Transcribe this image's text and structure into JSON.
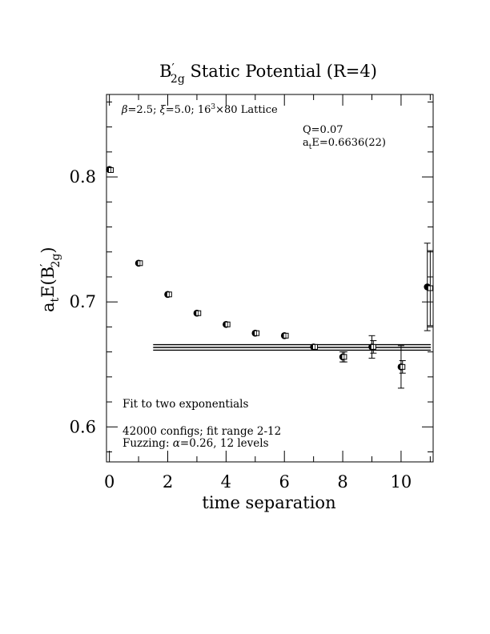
{
  "chart_data": {
    "type": "scatter",
    "title": "B′_2g Static Potential (R=4)",
    "title_main": "B",
    "title_prime": "′",
    "title_sub": "2g",
    "title_rest": " Static Potential (R=4)",
    "xlabel": "time separation",
    "ylabel": "a_t E(B′_2g)",
    "ylabel_parts": {
      "a": "a",
      "t_sub": "t",
      "E": "E(B",
      "prime": "′",
      "sub": "2g",
      "close": ")"
    },
    "xlim": [
      -0.1,
      11.1
    ],
    "ylim": [
      0.572,
      0.866
    ],
    "x_ticks": [
      0,
      2,
      4,
      6,
      8,
      10
    ],
    "x_tick_labels": [
      "0",
      "2",
      "4",
      "6",
      "8",
      "10"
    ],
    "y_ticks": [
      0.6,
      0.7,
      0.8
    ],
    "y_tick_labels": [
      "0.6",
      "0.7",
      "0.8"
    ],
    "annotations": {
      "lattice": {
        "beta": "β",
        "rest1": "=2.5; ",
        "xi": "ξ",
        "rest2": "=5.0; 16",
        "sup": "3",
        "rest3": "×80 Lattice"
      },
      "q": "Q=0.07",
      "energy": {
        "a": "a",
        "t_sub": "t",
        "rest": "E=0.6636(22)"
      },
      "fit": "Fit to two exponentials",
      "configs": "42000 configs; fit range 2-12",
      "fuzzing": {
        "pre": "Fuzzing: ",
        "alpha": "α",
        "post": "=0.26, 12 levels"
      }
    },
    "series": [
      {
        "name": "",
        "marker": "filled-circle",
        "points": [
          {
            "x": 0,
            "y": 0.806,
            "err": 0
          },
          {
            "x": 1,
            "y": 0.731,
            "err": 0
          },
          {
            "x": 2,
            "y": 0.706,
            "err": 0
          },
          {
            "x": 3,
            "y": 0.691,
            "err": 0
          },
          {
            "x": 4,
            "y": 0.682,
            "err": 0
          },
          {
            "x": 5,
            "y": 0.675,
            "err": 0
          },
          {
            "x": 6,
            "y": 0.673,
            "err": 0
          },
          {
            "x": 7,
            "y": 0.664,
            "err": 0
          },
          {
            "x": 8,
            "y": 0.656,
            "err": 0.004
          },
          {
            "x": 9,
            "y": 0.664,
            "err": 0.009
          },
          {
            "x": 10,
            "y": 0.648,
            "err": 0.017
          },
          {
            "x": 10.9,
            "y": 0.712,
            "err": 0.035
          }
        ]
      },
      {
        "name": "",
        "marker": "open-square",
        "points": [
          {
            "x": 0.05,
            "y": 0.8055,
            "err": 0
          },
          {
            "x": 1.05,
            "y": 0.731,
            "err": 0
          },
          {
            "x": 2.05,
            "y": 0.706,
            "err": 0
          },
          {
            "x": 3.05,
            "y": 0.691,
            "err": 0
          },
          {
            "x": 4.05,
            "y": 0.682,
            "err": 0
          },
          {
            "x": 5.05,
            "y": 0.675,
            "err": 0
          },
          {
            "x": 6.05,
            "y": 0.673,
            "err": 0
          },
          {
            "x": 7.05,
            "y": 0.664,
            "err": 0
          },
          {
            "x": 8.05,
            "y": 0.656,
            "err": 0.004
          },
          {
            "x": 9.05,
            "y": 0.664,
            "err": 0.005
          },
          {
            "x": 10.05,
            "y": 0.648,
            "err": 0.005
          },
          {
            "x": 11.0,
            "y": 0.711,
            "err": 0.03
          }
        ]
      }
    ],
    "fit_band": {
      "x_range": [
        1.5,
        11.1
      ],
      "center": 0.6636,
      "error": 0.0022
    },
    "grid": false,
    "legend": "none"
  }
}
